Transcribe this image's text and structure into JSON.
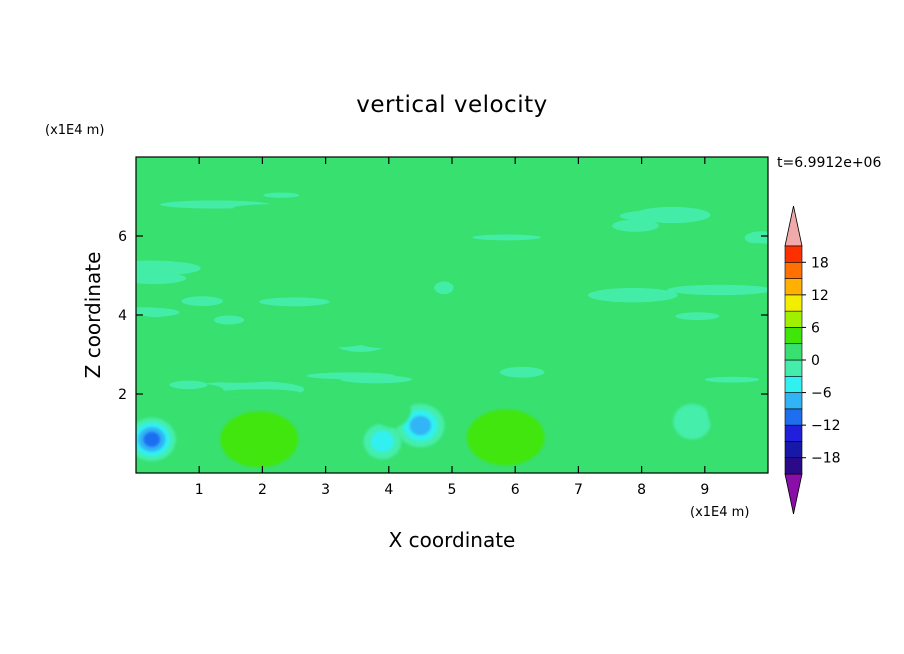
{
  "chart_data": {
    "type": "heatmap",
    "title": "vertical velocity",
    "xlabel": "X coordinate",
    "ylabel": "Z coordinate",
    "x_unit": "(x1E4 m)",
    "y_unit": "(x1E4 m)",
    "time_label": "t=6.9912e+06",
    "xlim": [
      0,
      10
    ],
    "ylim": [
      0,
      8
    ],
    "x_ticks": [
      1,
      2,
      3,
      4,
      5,
      6,
      7,
      8,
      9
    ],
    "y_ticks": [
      2,
      4,
      6
    ],
    "grid": false,
    "background_level": 0,
    "features": [
      {
        "kind": "updraft",
        "x": 1.95,
        "z": 0.85,
        "peak": 6
      },
      {
        "kind": "updraft",
        "x": 5.85,
        "z": 0.9,
        "peak": 6
      },
      {
        "kind": "downdraft",
        "x": 0.25,
        "z": 0.85,
        "peak": -12
      },
      {
        "kind": "downdraft",
        "x": 3.9,
        "z": 0.8,
        "peak": -6
      },
      {
        "kind": "downdraft",
        "x": 4.5,
        "z": 1.2,
        "peak": -9
      },
      {
        "kind": "downdraft",
        "x": 8.8,
        "z": 1.3,
        "peak": -3
      },
      {
        "kind": "updraft",
        "x": 4.05,
        "z": 1.6,
        "peak": 3
      },
      {
        "kind": "updraft",
        "x": 9.35,
        "z": 1.5,
        "peak": 3
      },
      {
        "kind": "updraft",
        "x": 9.5,
        "z": 0.55,
        "peak": 3
      },
      {
        "kind": "updraft",
        "x": 7.95,
        "z": 0.3,
        "peak": 3
      },
      {
        "kind": "updraft",
        "x": 4.3,
        "z": 7.55,
        "peak": 3
      }
    ],
    "colorbar": {
      "levels": [
        -21,
        -18,
        -15,
        -12,
        -9,
        -6,
        -3,
        0,
        3,
        6,
        9,
        12,
        15,
        18,
        21
      ],
      "tick_values": [
        18,
        12,
        6,
        0,
        -6,
        -12,
        -18
      ],
      "tick_labels": [
        "18",
        "12",
        "6",
        "0",
        "−6",
        "−12",
        "−18"
      ],
      "colors_low_to_high": [
        "#2b0a8a",
        "#1818a8",
        "#2020dc",
        "#1e6ef0",
        "#30b4f6",
        "#30f0f0",
        "#44eeaa",
        "#38e070",
        "#40e60a",
        "#a0f000",
        "#f2ee00",
        "#ffb000",
        "#ff7000",
        "#ff3000"
      ],
      "under_color": "#8a0ea8",
      "over_color": "#f0aaaa"
    }
  }
}
